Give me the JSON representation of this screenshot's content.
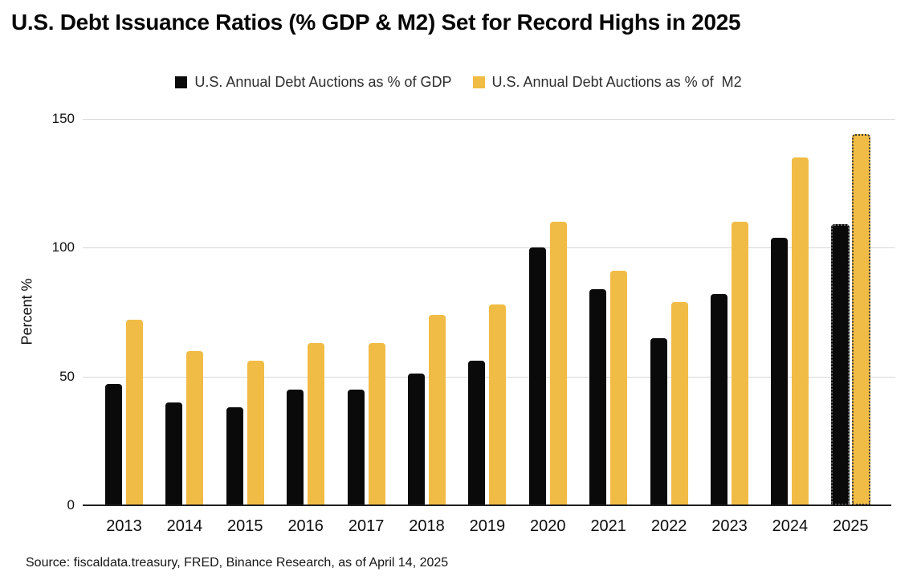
{
  "title": "U.S. Debt Issuance Ratios (% GDP & M2) Set for Record Highs in 2025",
  "source_note": "Source: fiscaldata.treasury, FRED, Binance Research, as of April 14, 2025",
  "colors": {
    "gdp_bar": "#0a0a0a",
    "m2_bar": "#F0BC45",
    "gridline": "#d8d8d8",
    "axis": "#1f1f1f"
  },
  "legend": [
    {
      "label": "U.S. Annual Debt Auctions as % of GDP",
      "color": "#0a0a0a"
    },
    {
      "label": "U.S. Annual Debt Auctions as % of  M2",
      "color": "#F0BC45"
    }
  ],
  "chart_data": {
    "type": "bar",
    "title": "U.S. Debt Issuance Ratios (% GDP & M2) Set for Record Highs in 2025",
    "xlabel": "",
    "ylabel": "Percent %",
    "categories": [
      "2013",
      "2014",
      "2015",
      "2016",
      "2017",
      "2018",
      "2019",
      "2020",
      "2021",
      "2022",
      "2023",
      "2024",
      "2025"
    ],
    "series": [
      {
        "name": "U.S. Annual Debt Auctions as % of GDP",
        "color": "#0a0a0a",
        "values": [
          47,
          40,
          38,
          45,
          45,
          51,
          56,
          100,
          84,
          65,
          82,
          104,
          109
        ]
      },
      {
        "name": "U.S. Annual Debt Auctions as % of  M2",
        "color": "#F0BC45",
        "values": [
          72,
          60,
          56,
          63,
          63,
          74,
          78,
          110,
          91,
          79,
          110,
          135,
          144
        ]
      }
    ],
    "ylim": [
      0,
      150
    ],
    "yticks": [
      0,
      50,
      100,
      150
    ],
    "grid": true,
    "legend_position": "top",
    "projected_category": "2025",
    "projected_style": "dotted-outline"
  }
}
